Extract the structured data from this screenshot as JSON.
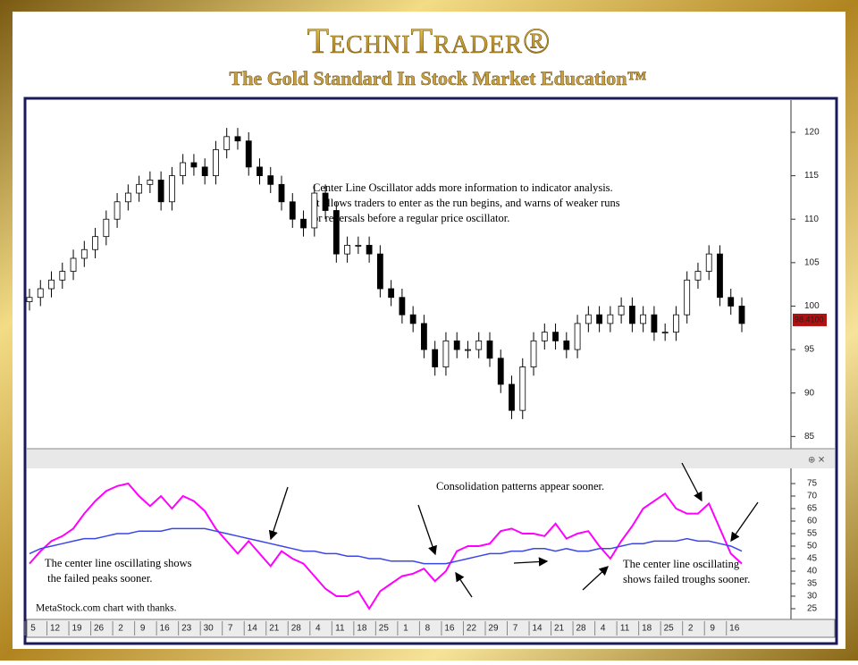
{
  "header": {
    "title": "TechniTrader®",
    "subtitle": "The Gold Standard In Stock Market Education™"
  },
  "chart_data": [
    {
      "type": "candlestick",
      "open": [
        100.5,
        101,
        102,
        103,
        104,
        105.5,
        106.5,
        108,
        110,
        112,
        113,
        114,
        114.5,
        112,
        115,
        116.5,
        116,
        115,
        118,
        119.5,
        119,
        116,
        115,
        114,
        112,
        110,
        109,
        113,
        111,
        106,
        107,
        107,
        106,
        102,
        101,
        99,
        98,
        95,
        93,
        96,
        95,
        95,
        96,
        94,
        91,
        88,
        93,
        96,
        97,
        96,
        95,
        98,
        99,
        98,
        99,
        100,
        98,
        99,
        97,
        97,
        99,
        103,
        104,
        106,
        101,
        100
      ],
      "high": [
        102,
        103,
        104,
        105,
        106.5,
        107.5,
        109,
        111,
        113,
        114,
        115,
        115.5,
        115.5,
        116,
        117.5,
        117.5,
        117,
        119,
        120.5,
        120.5,
        120,
        117,
        116,
        115,
        113,
        111,
        114,
        114,
        112,
        108,
        108,
        108,
        107,
        103,
        102,
        100,
        99,
        96,
        97,
        97,
        96,
        97,
        97,
        95,
        92,
        94,
        97,
        98,
        98,
        97,
        99,
        100,
        100,
        100,
        101,
        101,
        100,
        100,
        98,
        100,
        104,
        105,
        107,
        107,
        102,
        101
      ],
      "low": [
        99.5,
        100,
        101,
        102,
        103,
        104.5,
        105.5,
        107,
        109,
        111,
        112,
        113,
        111,
        111,
        114,
        115,
        114,
        114,
        117,
        118,
        115,
        114,
        113,
        111,
        109,
        108,
        108,
        110,
        105,
        105,
        106,
        105,
        101,
        100,
        98,
        97,
        94,
        92,
        92,
        94,
        94,
        94,
        93,
        90,
        87,
        87,
        92,
        95,
        95,
        94,
        94,
        97,
        97,
        97,
        98,
        97,
        97,
        96,
        96,
        96,
        98,
        102,
        103,
        100,
        99,
        97
      ],
      "close": [
        101,
        102,
        103,
        104,
        105.5,
        106.5,
        108,
        110,
        112,
        113,
        114,
        114.5,
        112,
        115,
        116.5,
        116,
        115,
        118,
        119.5,
        119,
        116,
        115,
        114,
        112,
        110,
        109,
        113,
        111,
        106,
        107,
        107,
        106,
        102,
        101,
        99,
        98,
        95,
        93,
        96,
        95,
        95,
        96,
        94,
        91,
        88,
        93,
        96,
        97,
        96,
        95,
        98,
        99,
        98,
        99,
        100,
        98,
        99,
        97,
        97,
        99,
        103,
        104,
        106,
        101,
        100,
        98
      ],
      "up_color": "#ffffff",
      "down_color": "#000000",
      "ylim": [
        83.8,
        123.7
      ],
      "yticks": [
        85,
        90,
        95,
        100,
        105,
        110,
        115,
        120
      ],
      "last_price": {
        "value": 98.41,
        "label": "98.4100"
      },
      "annotation": [
        "Center Line Oscillator adds more information to indicator analysis.",
        "It allows traders to enter as the run begins, and warns of weaker runs",
        "or reversals before a regular price oscillator."
      ]
    },
    {
      "type": "line",
      "categories": [
        "5",
        null,
        "12",
        null,
        "19",
        null,
        "26",
        null,
        "2",
        null,
        "9",
        null,
        "16",
        null,
        "23",
        null,
        "30",
        null,
        "7",
        null,
        "14",
        null,
        "21",
        null,
        "28",
        null,
        "4",
        null,
        "11",
        null,
        "18",
        null,
        "25",
        null,
        "1",
        null,
        "8",
        null,
        "16",
        null,
        "22",
        null,
        "29",
        null,
        "7",
        null,
        "14",
        null,
        "21",
        null,
        "28",
        null,
        "4",
        null,
        "11",
        null,
        "18",
        null,
        "25",
        null,
        "2",
        null,
        "9",
        null,
        "16",
        null
      ],
      "series": [
        {
          "color": "#ff00ff",
          "values": [
            43,
            48,
            52,
            54,
            57,
            63,
            68,
            72,
            74,
            75,
            70,
            66,
            70,
            65,
            70,
            68,
            64,
            57,
            52,
            47,
            52,
            47,
            42,
            48,
            45,
            43,
            38,
            33,
            30,
            30,
            32,
            25,
            32,
            35,
            38,
            39,
            41,
            36,
            40,
            48,
            50,
            50,
            51,
            56,
            57,
            55,
            55,
            54,
            59,
            53,
            55,
            56,
            50,
            45,
            52,
            58,
            65,
            68,
            71,
            65,
            63,
            63,
            67,
            57,
            47,
            43
          ]
        },
        {
          "color": "#3c46e6",
          "values": [
            47,
            49,
            50,
            51,
            52,
            53,
            53,
            54,
            55,
            55,
            56,
            56,
            56,
            57,
            57,
            57,
            57,
            56,
            55,
            54,
            53,
            52,
            51,
            50,
            49,
            48,
            48,
            47,
            47,
            46,
            46,
            45,
            45,
            44,
            44,
            44,
            43,
            43,
            43,
            44,
            45,
            46,
            47,
            47,
            48,
            48,
            49,
            49,
            48,
            49,
            48,
            48,
            49,
            49,
            50,
            51,
            51,
            52,
            52,
            52,
            53,
            52,
            52,
            51,
            50,
            48
          ]
        }
      ],
      "ylim": [
        20,
        80
      ],
      "yticks": [
        25,
        30,
        35,
        40,
        45,
        50,
        55,
        60,
        65,
        70,
        75
      ],
      "annotations": {
        "top": "Consolidation patterns appear sooner.",
        "left": [
          "The center line oscillating shows",
          " the failed peaks sooner."
        ],
        "right": [
          "The center line oscillating",
          "shows failed troughs sooner."
        ],
        "credit": "MetaStock.com chart with thanks."
      }
    }
  ]
}
